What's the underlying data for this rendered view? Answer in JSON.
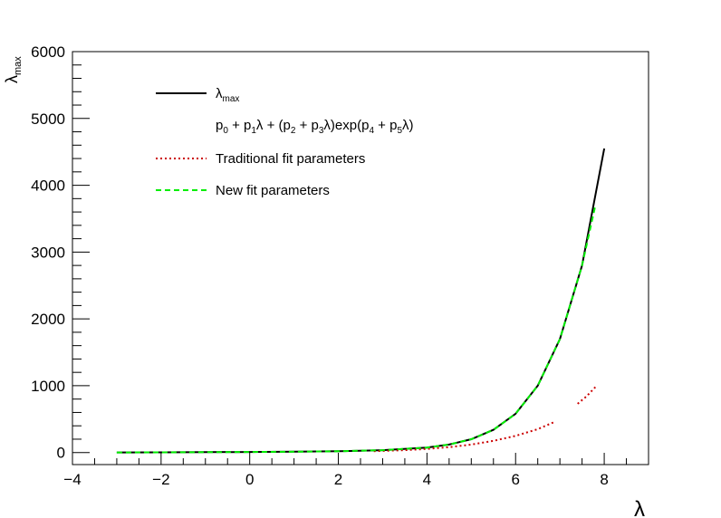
{
  "chart_data": {
    "type": "line",
    "title": "",
    "xlabel": "λ",
    "ylabel_main": "λ",
    "ylabel_sub": "max",
    "xlim": [
      -4,
      9
    ],
    "ylim": [
      -180,
      6000
    ],
    "x_ticks": [
      -4,
      -2,
      0,
      2,
      4,
      6,
      8
    ],
    "x_tick_labels": [
      "−4",
      "−2",
      "0",
      "2",
      "4",
      "6",
      "8"
    ],
    "y_ticks": [
      0,
      1000,
      2000,
      3000,
      4000,
      5000,
      6000
    ],
    "y_tick_labels": [
      "0",
      "1000",
      "2000",
      "3000",
      "4000",
      "5000",
      "6000"
    ],
    "grid": false,
    "legend_position": "top-left",
    "legend": [
      {
        "label": "λ",
        "sub": "max",
        "style": "solid",
        "color": "#000000"
      },
      {
        "formula": [
          "p",
          "0",
          " + p",
          "1",
          "λ + (p",
          "2",
          " + p",
          "3",
          "λ)exp(p",
          "4",
          " + p",
          "5",
          "λ)"
        ],
        "style": "none"
      },
      {
        "label": "Traditional fit parameters",
        "style": "dotted",
        "color": "#cc0000"
      },
      {
        "label": "New fit parameters",
        "style": "dashed",
        "color": "#00ee00"
      }
    ],
    "series": [
      {
        "name": "λmax",
        "style": "solid",
        "color": "#000000",
        "x": [
          -3,
          -2,
          -1,
          0,
          1,
          2,
          3,
          4,
          4.5,
          5,
          5.5,
          6,
          6.5,
          7,
          7.5,
          8
        ],
        "y": [
          2,
          3,
          5,
          8,
          12,
          19,
          35,
          75,
          120,
          200,
          340,
          580,
          1000,
          1700,
          2800,
          4550
        ]
      },
      {
        "name": "Traditional fit parameters",
        "style": "dotted",
        "color": "#cc0000",
        "segments": [
          {
            "x": [
              2.8,
              3.5,
              4,
              4.5,
              5,
              5.5,
              6,
              6.5,
              6.85
            ],
            "y": [
              20,
              35,
              55,
              80,
              120,
              175,
              250,
              350,
              450
            ]
          },
          {
            "x": [
              7.4,
              7.6,
              7.8
            ],
            "y": [
              730,
              840,
              980
            ]
          }
        ]
      },
      {
        "name": "New fit parameters",
        "style": "dashed",
        "color": "#00ee00",
        "x": [
          -3,
          -2,
          -1,
          0,
          1,
          2,
          3,
          4,
          4.5,
          5,
          5.5,
          6,
          6.5,
          7,
          7.5,
          7.8
        ],
        "y": [
          2,
          3,
          5,
          8,
          12,
          19,
          35,
          75,
          120,
          200,
          340,
          580,
          1000,
          1700,
          2800,
          3700
        ]
      }
    ]
  }
}
